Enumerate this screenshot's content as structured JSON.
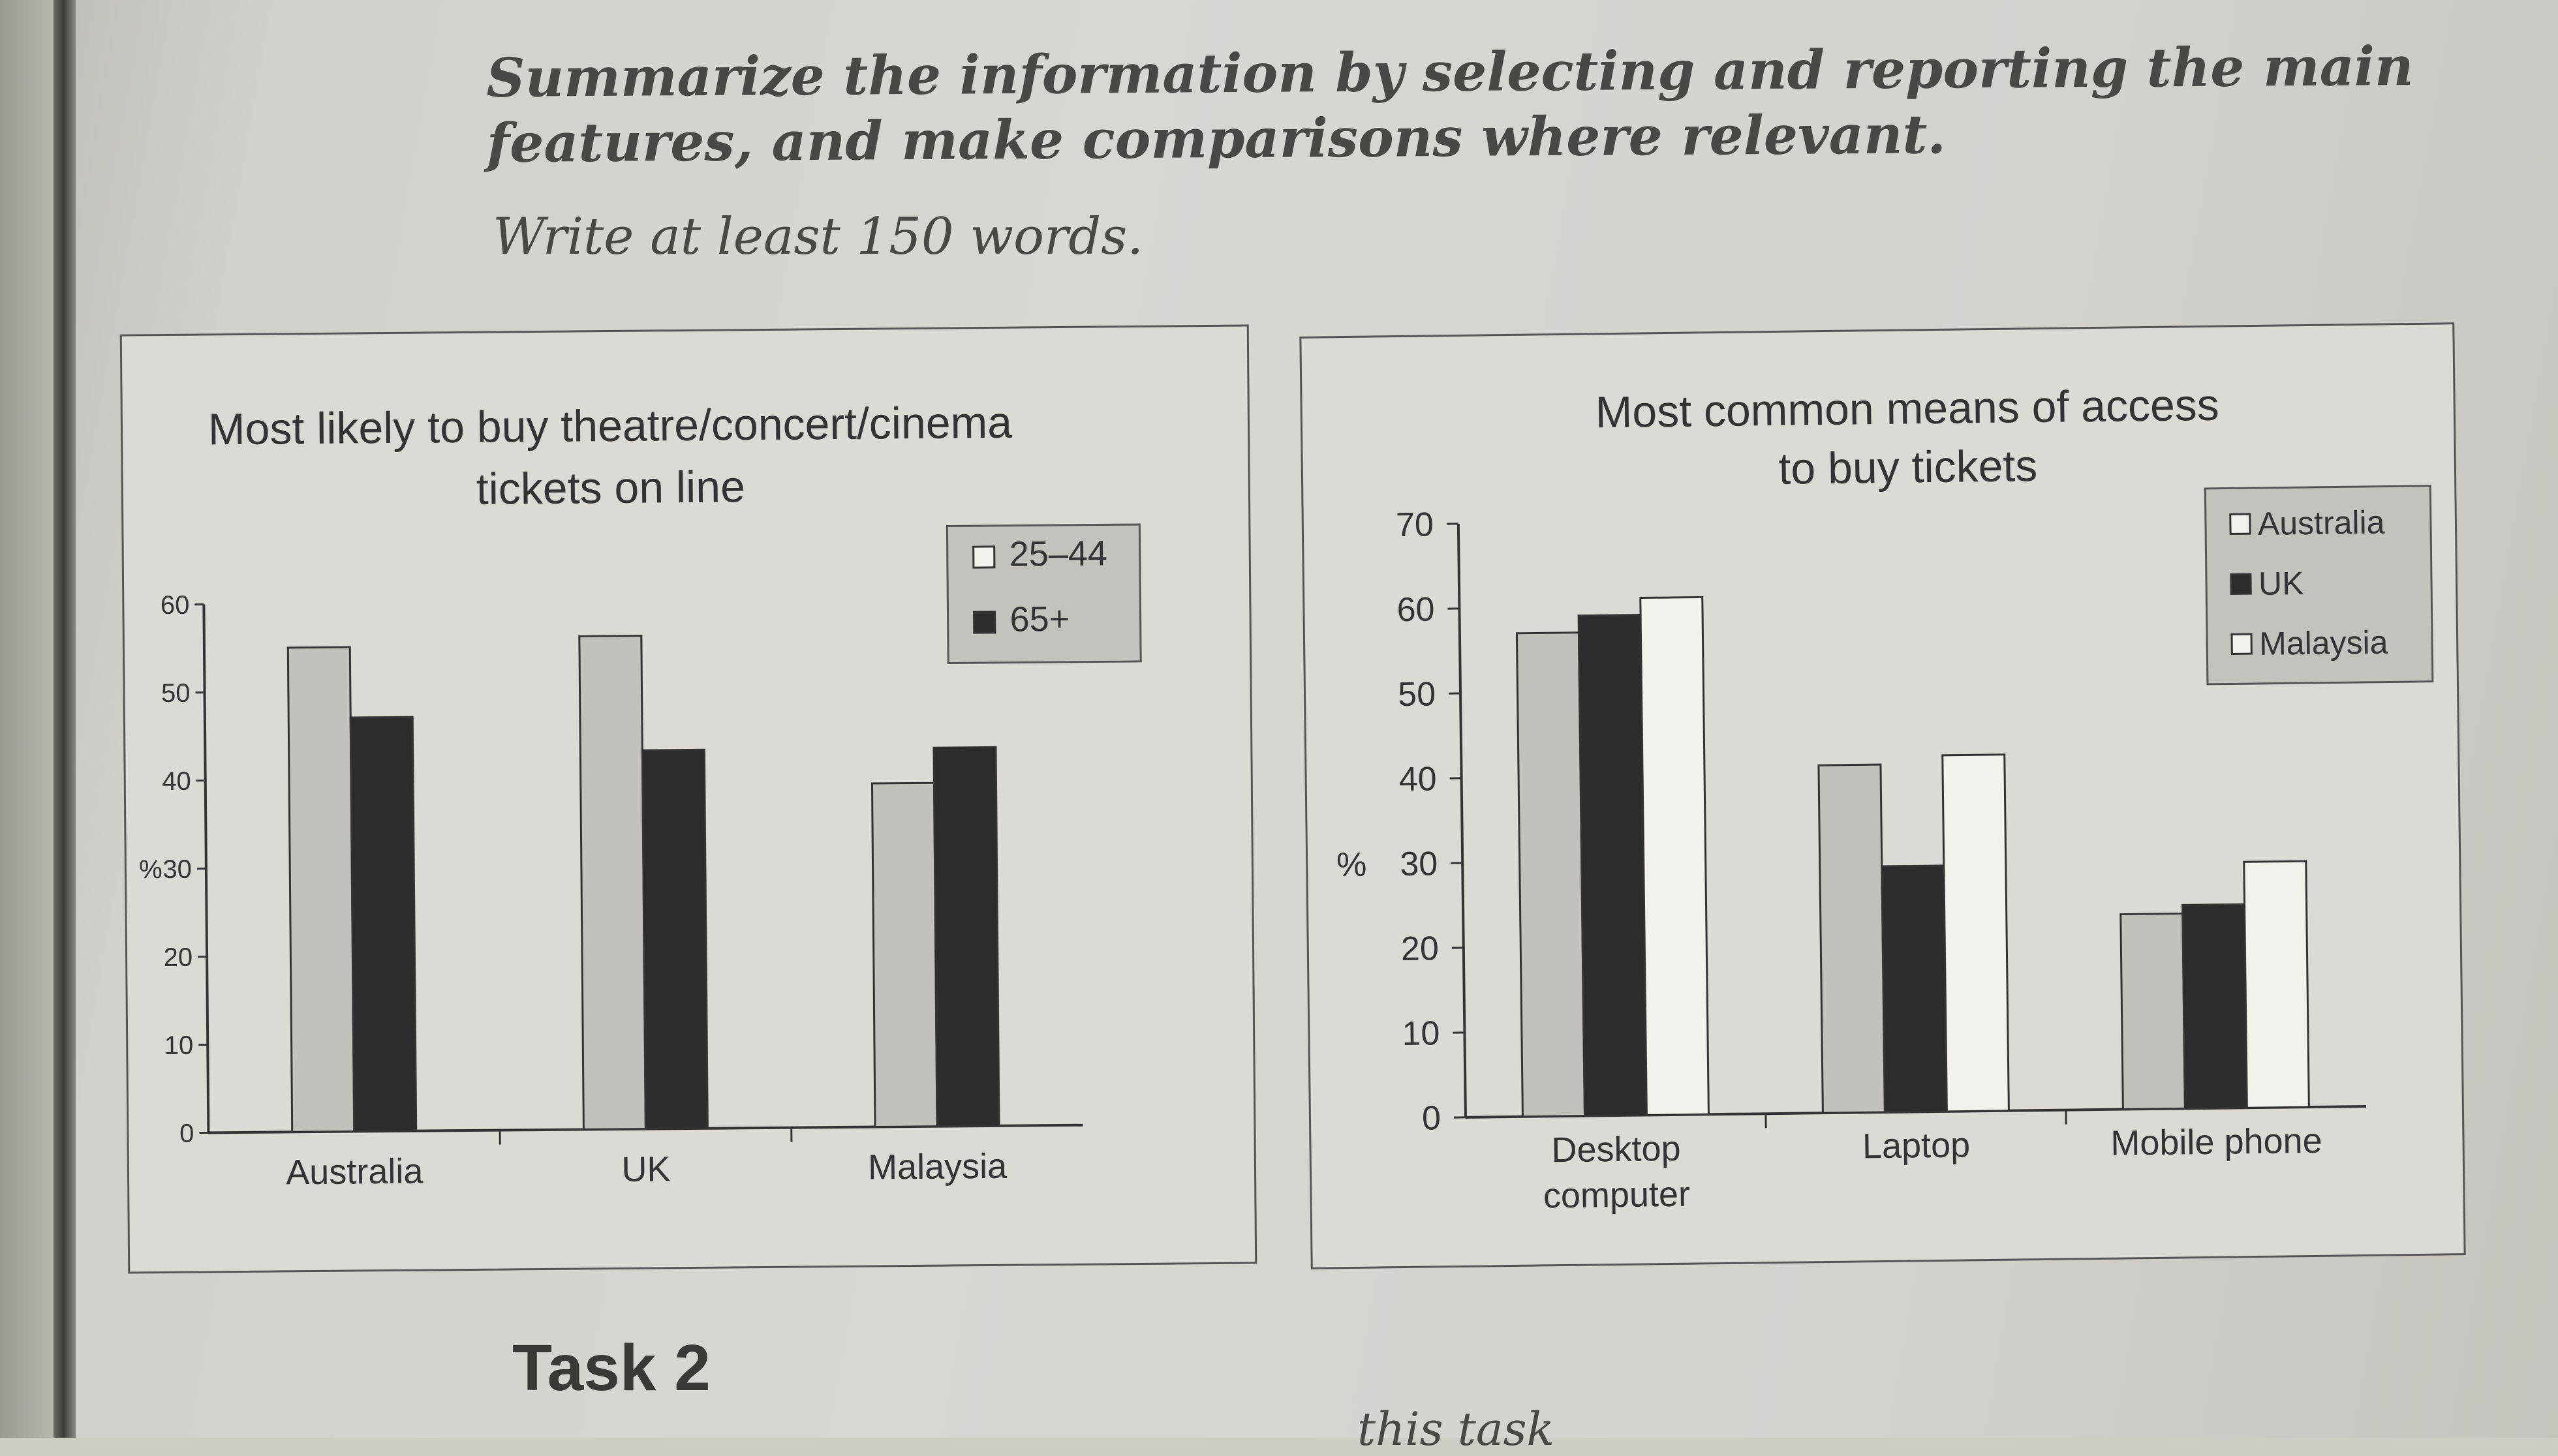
{
  "instruction": {
    "text": "Summarize the information by selecting and reporting the main features, and make comparisons where relevant.",
    "words": "Write at least 150 words."
  },
  "task2_heading": "Task 2",
  "footer_fragment": "this task",
  "colors": {
    "light_bar": "#c3c1bc",
    "dark_bar": "#2c2c2c",
    "white_bar": "#f2f1ec",
    "legend_bg": "#c4c2bd"
  },
  "chart_data": [
    {
      "type": "bar",
      "title": "Most likely to buy theatre/concert/cinema tickets on line",
      "title_lines": [
        "Most likely to buy theatre/concert/cinema",
        "tickets on line"
      ],
      "ylabel": "%",
      "ylim": [
        0,
        60
      ],
      "yticks": [
        0,
        10,
        20,
        30,
        40,
        50,
        60
      ],
      "categories": [
        "Australia",
        "UK",
        "Malaysia"
      ],
      "legend_position": "top-right",
      "series": [
        {
          "name": "25–44",
          "values": [
            55,
            56,
            39
          ]
        },
        {
          "name": "65+",
          "values": [
            47,
            43,
            43
          ]
        }
      ]
    },
    {
      "type": "bar",
      "title": "Most common means of access to buy tickets",
      "title_lines": [
        "Most common means of access",
        "to buy tickets"
      ],
      "ylabel": "%",
      "ylim": [
        0,
        70
      ],
      "yticks": [
        0,
        10,
        20,
        30,
        40,
        50,
        60,
        70
      ],
      "categories": [
        "Desktop computer",
        "Laptop",
        "Mobile phone"
      ],
      "category_lines": [
        [
          "Desktop",
          "computer"
        ],
        [
          "Laptop"
        ],
        [
          "Mobile phone"
        ]
      ],
      "legend_position": "top-right",
      "series": [
        {
          "name": "Australia",
          "values": [
            57,
            41,
            23
          ]
        },
        {
          "name": "UK",
          "values": [
            59,
            29,
            24
          ]
        },
        {
          "name": "Malaysia",
          "values": [
            61,
            42,
            29
          ]
        }
      ]
    }
  ]
}
